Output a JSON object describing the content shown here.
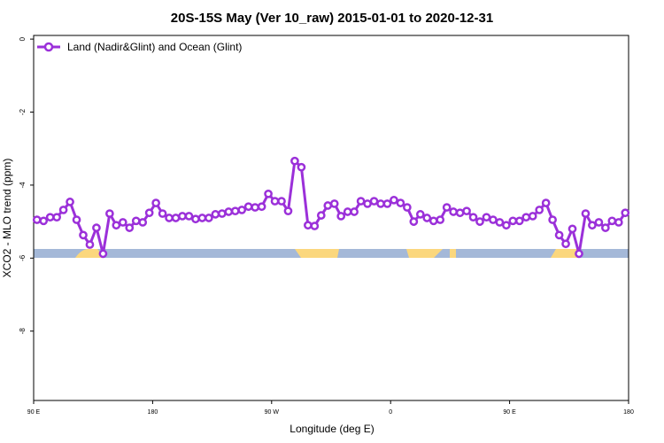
{
  "chart_data": {
    "type": "line",
    "title": "20S-15S May (Ver 10_raw)   2015-01-01 to 2020-12-31",
    "x_label": "Longitude (deg E)",
    "y_label": "XCO2 - MLO trend (ppm)",
    "xlim": [
      90,
      540
    ],
    "ylim": [
      -9.9,
      0.1
    ],
    "xticks": [
      {
        "value": 90,
        "label": "90 E"
      },
      180,
      {
        "value": 270,
        "label": "90 W"
      },
      {
        "value": 360,
        "label": "0"
      },
      {
        "value": 450,
        "label": "90 E"
      },
      {
        "value": 540,
        "label": "180"
      }
    ],
    "yticks": [
      0,
      -2,
      -4,
      -6,
      -8
    ],
    "legend": "top-left",
    "x": [
      92.5,
      97.5,
      102.5,
      107.5,
      112.5,
      117.5,
      122.5,
      127.5,
      132.5,
      137.5,
      142.5,
      147.5,
      152.5,
      157.5,
      162.5,
      167.5,
      172.5,
      177.5,
      182.5,
      187.5,
      192.5,
      197.5,
      202.5,
      207.5,
      212.5,
      217.5,
      222.5,
      227.5,
      232.5,
      237.5,
      242.5,
      247.5,
      252.5,
      257.5,
      262.5,
      267.5,
      272.5,
      277.5,
      282.5,
      287.5,
      292.5,
      297.5,
      302.5,
      307.5,
      312.5,
      317.5,
      322.5,
      327.5,
      332.5,
      337.5,
      342.5,
      347.5,
      352.5,
      357.5,
      362.5,
      367.5,
      372.5,
      377.5,
      382.5,
      387.5,
      392.5,
      397.5,
      402.5,
      407.5,
      412.5,
      417.5,
      422.5,
      427.5,
      432.5,
      437.5,
      442.5,
      447.5,
      452.5,
      457.5,
      462.5,
      467.5,
      472.5,
      477.5,
      482.5,
      487.5,
      492.5,
      497.5,
      502.5,
      507.5,
      512.5,
      517.5,
      522.5,
      527.5,
      532.5,
      537.5
    ],
    "series": [
      {
        "name": "Land (Nadir&Glint) and Ocean (Glint)",
        "color": "#9b30d9",
        "values": [
          -4.95,
          -4.98,
          -4.88,
          -4.88,
          -4.68,
          -4.46,
          -4.95,
          -5.37,
          -5.63,
          -5.17,
          -5.88,
          -4.78,
          -5.1,
          -5.02,
          -5.17,
          -4.98,
          -5.02,
          -4.76,
          -4.49,
          -4.78,
          -4.9,
          -4.9,
          -4.85,
          -4.85,
          -4.93,
          -4.9,
          -4.9,
          -4.8,
          -4.78,
          -4.73,
          -4.71,
          -4.68,
          -4.59,
          -4.61,
          -4.59,
          -4.24,
          -4.44,
          -4.44,
          -4.71,
          -3.34,
          -3.51,
          -5.1,
          -5.12,
          -4.83,
          -4.56,
          -4.51,
          -4.85,
          -4.73,
          -4.73,
          -4.44,
          -4.51,
          -4.44,
          -4.51,
          -4.51,
          -4.41,
          -4.49,
          -4.61,
          -5.0,
          -4.8,
          -4.9,
          -4.98,
          -4.95,
          -4.61,
          -4.73,
          -4.76,
          -4.71,
          -4.88,
          -5.0,
          -4.88,
          -4.95,
          -5.02,
          -5.1,
          -4.98,
          -4.98,
          -4.88,
          -4.85,
          -4.68,
          -4.49,
          -4.95,
          -5.37,
          -5.61,
          -5.2,
          -5.88,
          -4.78,
          -5.1,
          -5.02,
          -5.17,
          -4.98,
          -5.02,
          -4.76
        ]
      }
    ]
  }
}
